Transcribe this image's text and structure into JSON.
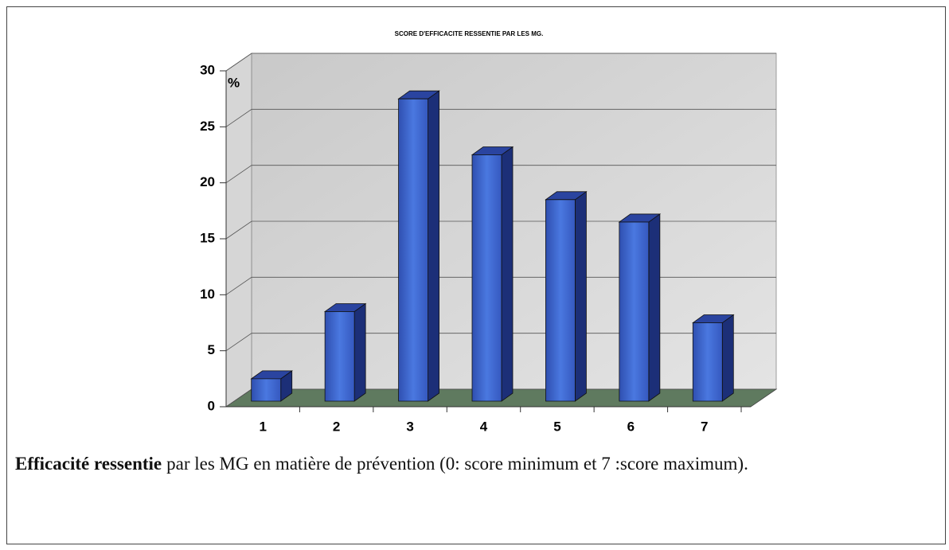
{
  "chart_data": {
    "type": "bar",
    "title": "SCORE D'EFFICACITE RESSENTIE PAR LES MG.",
    "y_unit": "%",
    "categories": [
      "1",
      "2",
      "3",
      "4",
      "5",
      "6",
      "7"
    ],
    "values": [
      2,
      8,
      27,
      22,
      18,
      16,
      7
    ],
    "color": "#3d63c9",
    "ylim": [
      0,
      30
    ],
    "yticks": [
      0,
      5,
      10,
      15,
      20,
      25,
      30
    ],
    "grid": true
  },
  "caption": {
    "bold": "Efficacité ressentie",
    "text": "par les MG en matière de prévention (0: score minimum et 7 :score maximum)."
  }
}
